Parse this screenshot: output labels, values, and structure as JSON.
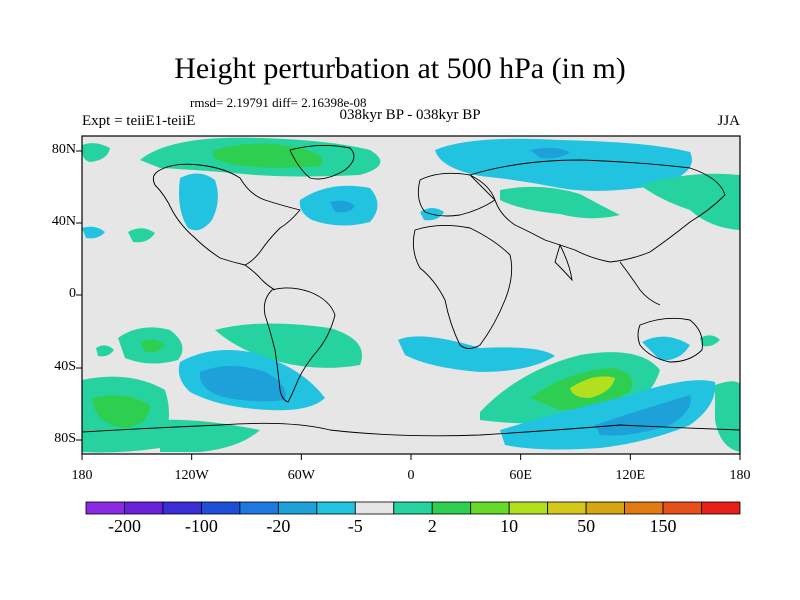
{
  "title": "Height perturbation at 500 hPa (in m)",
  "stats": "rmsd= 2.19791 diff= 2.16398e-08",
  "left_label": "Expt = teiiE1-teiiE",
  "center_label": "038kyr BP - 038kyr BP",
  "right_label": "JJA",
  "map": {
    "background_color": "#e6e6e6",
    "lat_ticks": [
      "80N",
      "40N",
      "0",
      "40S",
      "80S"
    ],
    "lon_ticks": [
      "180",
      "120W",
      "60W",
      "0",
      "60E",
      "120E",
      "180"
    ]
  },
  "colorbar": {
    "colors": [
      "#8a2be2",
      "#6a1fd8",
      "#3a2fd6",
      "#1f4fd8",
      "#1e78e0",
      "#1ea0d8",
      "#22c3e0",
      "#e6e6e6",
      "#26d3a0",
      "#2ecf50",
      "#66d92a",
      "#b3e01e",
      "#d4c81a",
      "#d6a514",
      "#e07a12",
      "#e6501a",
      "#e62014"
    ],
    "labels": [
      "-200",
      "-100",
      "-20",
      "-5",
      "2",
      "10",
      "50",
      "150"
    ]
  }
}
